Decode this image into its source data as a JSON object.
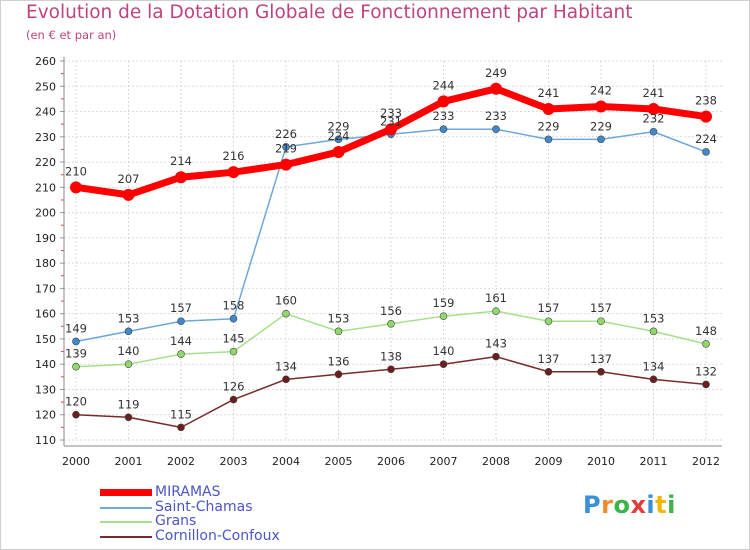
{
  "title": "Evolution de la Dotation Globale de Fonctionnement par Habitant",
  "subtitle": "(en € et par an)",
  "logo": {
    "text": "Proxiti",
    "letters": [
      {
        "ch": "P",
        "color": "#3a8fd9"
      },
      {
        "ch": "r",
        "color": "#f08a2c"
      },
      {
        "ch": "o",
        "color": "#3ab54a"
      },
      {
        "ch": "x",
        "color": "#e23b3b"
      },
      {
        "ch": "i",
        "color": "#3a8fd9"
      },
      {
        "ch": "t",
        "color": "#f2b800"
      },
      {
        "ch": "i",
        "color": "#3ab54a"
      }
    ]
  },
  "chart_data": {
    "type": "line",
    "title": "Evolution de la Dotation Globale de Fonctionnement par Habitant",
    "subtitle": "(en € et par an)",
    "x": [
      "2000",
      "2001",
      "2002",
      "2003",
      "2004",
      "2005",
      "2006",
      "2007",
      "2008",
      "2009",
      "2010",
      "2011",
      "2012"
    ],
    "ylim": [
      110,
      260
    ],
    "yticks": [
      110,
      120,
      130,
      140,
      150,
      160,
      170,
      180,
      190,
      200,
      210,
      220,
      230,
      240,
      250,
      260
    ],
    "grid": true,
    "legend_position": "bottom-left",
    "series": [
      {
        "name": "MIRAMAS",
        "color": "#ff0000",
        "width": 7,
        "marker_color": "#ff0000",
        "marker_r": 6,
        "values": [
          210,
          207,
          214,
          216,
          219,
          224,
          233,
          244,
          249,
          241,
          242,
          241,
          238
        ],
        "labels": [
          "210",
          "207",
          "214",
          "216",
          "219",
          "224",
          "233",
          "244",
          "249",
          "241",
          "242",
          "241",
          "238"
        ]
      },
      {
        "name": "Saint-Chamas",
        "color": "#6ea7d8",
        "width": 1.5,
        "marker_color": "#3f88cc",
        "marker_r": 3.5,
        "values": [
          149,
          153,
          157,
          158,
          226,
          229,
          231,
          233,
          233,
          229,
          229,
          232,
          224
        ],
        "labels": [
          "149",
          "153",
          "157",
          "158",
          "226",
          "229",
          "231",
          "233",
          "233",
          "229",
          "229",
          "232",
          "224"
        ]
      },
      {
        "name": "Grans",
        "color": "#a6e08a",
        "width": 1.5,
        "marker_color": "#8fd86a",
        "marker_r": 3.5,
        "values": [
          139,
          140,
          144,
          145,
          160,
          153,
          156,
          159,
          161,
          157,
          157,
          153,
          148
        ],
        "labels": [
          "139",
          "140",
          "144",
          "145",
          "160",
          "153",
          "156",
          "159",
          "161",
          "157",
          "157",
          "153",
          "148"
        ]
      },
      {
        "name": "Cornillon-Confoux",
        "color": "#7a2a2a",
        "width": 1.5,
        "marker_color": "#6a1e1e",
        "marker_r": 3.5,
        "values": [
          120,
          119,
          115,
          126,
          134,
          136,
          138,
          140,
          143,
          137,
          137,
          134,
          132
        ],
        "labels": [
          "120",
          "119",
          "115",
          "126",
          "134",
          "136",
          "138",
          "140",
          "143",
          "137",
          "137",
          "134",
          "132"
        ]
      }
    ]
  }
}
